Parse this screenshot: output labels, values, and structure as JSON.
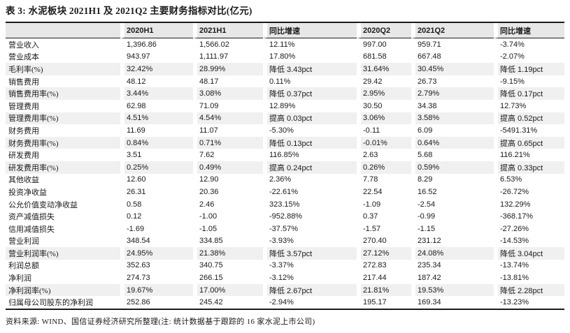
{
  "title": "表 3: 水泥板块 2021H1 及 2021Q2 主要财务指标对比(亿元)",
  "footer": "资料来源: WIND、国信证券经济研究所整理(注: 统计数据基于跟踪的 16 家水泥上市公司)",
  "colors": {
    "header_bg": "#e7e7e7",
    "row_shaded_bg": "#f0f0f0",
    "border": "#1a1a1a"
  },
  "table": {
    "columns": [
      "",
      "2020H1",
      "2021H1",
      "同比增速",
      "2020Q2",
      "2021Q2",
      "同比增速"
    ],
    "rows": [
      {
        "label": "营业收入",
        "shaded": false,
        "values": [
          "1,396.86",
          "1,566.02",
          "12.11%",
          "997.00",
          "959.71",
          "-3.74%"
        ]
      },
      {
        "label": "营业成本",
        "shaded": false,
        "values": [
          "943.97",
          "1,111.97",
          "17.80%",
          "681.58",
          "667.48",
          "-2.07%"
        ]
      },
      {
        "label": "毛利率(%)",
        "shaded": true,
        "values": [
          "32.42%",
          "28.99%",
          "降低 3.43pct",
          "31.64%",
          "30.45%",
          "降低 1.19pct"
        ]
      },
      {
        "label": "销售费用",
        "shaded": false,
        "values": [
          "48.12",
          "48.17",
          "0.11%",
          "29.42",
          "26.73",
          "-9.15%"
        ]
      },
      {
        "label": "销售费用率(%)",
        "shaded": true,
        "values": [
          "3.44%",
          "3.08%",
          "降低 0.37pct",
          "2.95%",
          "2.79%",
          "降低 0.17pct"
        ]
      },
      {
        "label": "管理费用",
        "shaded": false,
        "values": [
          "62.98",
          "71.09",
          "12.89%",
          "30.50",
          "34.38",
          "12.73%"
        ]
      },
      {
        "label": "管理费用率(%)",
        "shaded": true,
        "values": [
          "4.51%",
          "4.54%",
          "提高 0.03pct",
          "3.06%",
          "3.58%",
          "提高 0.52pct"
        ]
      },
      {
        "label": "财务费用",
        "shaded": false,
        "values": [
          "11.69",
          "11.07",
          "-5.30%",
          "-0.11",
          "6.09",
          "-5491.31%"
        ]
      },
      {
        "label": "财务费用率(%)",
        "shaded": true,
        "values": [
          "0.84%",
          "0.71%",
          "降低 0.13pct",
          "-0.01%",
          "0.64%",
          "提高 0.65pct"
        ]
      },
      {
        "label": "研发费用",
        "shaded": false,
        "values": [
          "3.51",
          "7.62",
          "116.85%",
          "2.63",
          "5.68",
          "116.21%"
        ]
      },
      {
        "label": "研发费用率(%)",
        "shaded": true,
        "values": [
          "0.25%",
          "0.49%",
          "提高 0.24pct",
          "0.26%",
          "0.59%",
          "提高 0.33pct"
        ]
      },
      {
        "label": "其他收益",
        "shaded": false,
        "values": [
          "12.60",
          "12.90",
          "2.36%",
          "7.78",
          "8.29",
          "6.53%"
        ]
      },
      {
        "label": "投资净收益",
        "shaded": false,
        "values": [
          "26.31",
          "20.36",
          "-22.61%",
          "22.54",
          "16.52",
          "-26.72%"
        ]
      },
      {
        "label": "公允价值变动净收益",
        "shaded": false,
        "values": [
          "0.58",
          "2.46",
          "323.15%",
          "-1.09",
          "-2.54",
          "132.29%"
        ]
      },
      {
        "label": "资产减值损失",
        "shaded": false,
        "values": [
          "0.12",
          "-1.00",
          "-952.88%",
          "0.37",
          "-0.99",
          "-368.17%"
        ]
      },
      {
        "label": "信用减值损失",
        "shaded": false,
        "values": [
          "-1.69",
          "-1.05",
          "-37.57%",
          "-1.57",
          "-1.15",
          "-27.26%"
        ]
      },
      {
        "label": "营业利润",
        "shaded": false,
        "values": [
          "348.54",
          "334.85",
          "-3.93%",
          "270.40",
          "231.12",
          "-14.53%"
        ]
      },
      {
        "label": "营业利润率(%)",
        "shaded": true,
        "values": [
          "24.95%",
          "21.38%",
          "降低 3.57pct",
          "27.12%",
          "24.08%",
          "降低 3.04pct"
        ]
      },
      {
        "label": "利润总额",
        "shaded": false,
        "values": [
          "352.63",
          "340.75",
          "-3.37%",
          "272.83",
          "235.34",
          "-13.74%"
        ]
      },
      {
        "label": "净利润",
        "shaded": false,
        "values": [
          "274.73",
          "266.15",
          "-3.12%",
          "217.44",
          "187.42",
          "-13.81%"
        ]
      },
      {
        "label": "净利润率(%)",
        "shaded": true,
        "values": [
          "19.67%",
          "17.00%",
          "降低 2.67pct",
          "21.81%",
          "19.53%",
          "降低 2.28pct"
        ]
      },
      {
        "label": "归属母公司股东的净利润",
        "shaded": false,
        "values": [
          "252.86",
          "245.42",
          "-2.94%",
          "195.17",
          "169.34",
          "-13.23%"
        ]
      }
    ]
  }
}
